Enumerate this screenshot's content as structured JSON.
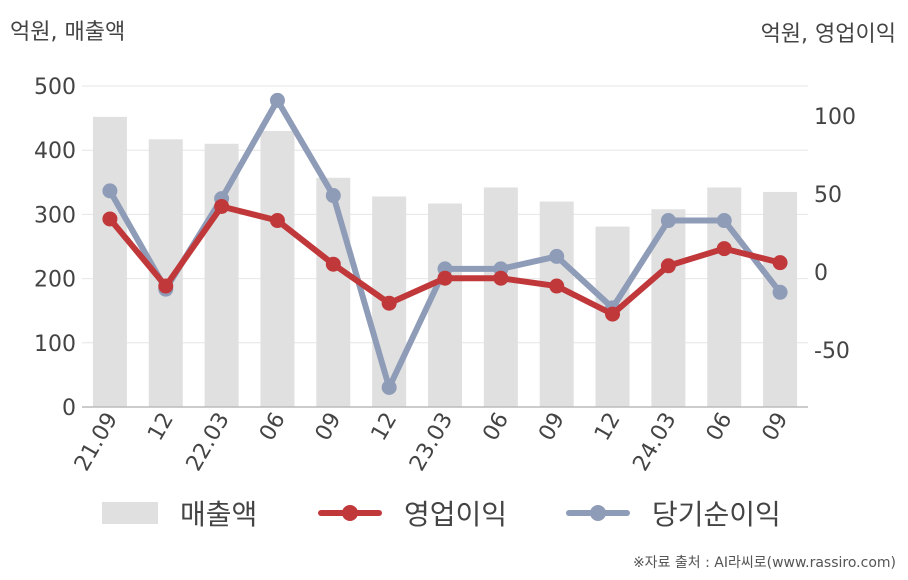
{
  "units": {
    "left": "억원, 매출액",
    "right": "억원, 영업이익"
  },
  "legend": {
    "sales": "매출액",
    "operating": "영업이익",
    "net": "당기순이익"
  },
  "source": "※자료 출처 : AI라씨로(www.rassiro.com)",
  "colors": {
    "bar": "#e0e0e0",
    "operating": "#c0383a",
    "net": "#8e9cb8"
  },
  "chart_data": {
    "type": "bar",
    "categories": [
      "21.09",
      "12",
      "22.03",
      "06",
      "09",
      "12",
      "23.03",
      "06",
      "09",
      "12",
      "24.03",
      "06",
      "09"
    ],
    "series": [
      {
        "name": "매출액",
        "type": "bar",
        "axis": "left",
        "values": [
          452,
          417,
          410,
          430,
          357,
          328,
          317,
          342,
          320,
          281,
          308,
          342,
          335
        ]
      },
      {
        "name": "영업이익",
        "type": "line",
        "axis": "right",
        "values": [
          34,
          -9,
          42,
          33,
          5,
          -20,
          -4,
          -4,
          -9,
          -27,
          4,
          15,
          6
        ]
      },
      {
        "name": "당기순이익",
        "type": "line",
        "axis": "right",
        "values": [
          52,
          -11,
          47,
          110,
          49,
          -74,
          2,
          2,
          10,
          -23,
          33,
          33,
          -13
        ]
      }
    ],
    "y_left": {
      "lim": [
        0,
        500
      ],
      "ticks": [
        0,
        100,
        200,
        300,
        400,
        500
      ]
    },
    "y_right": {
      "lim": [
        -85,
        120
      ],
      "ticks": [
        -50,
        0,
        50,
        100
      ]
    },
    "grid": true,
    "legend_position": "bottom"
  }
}
